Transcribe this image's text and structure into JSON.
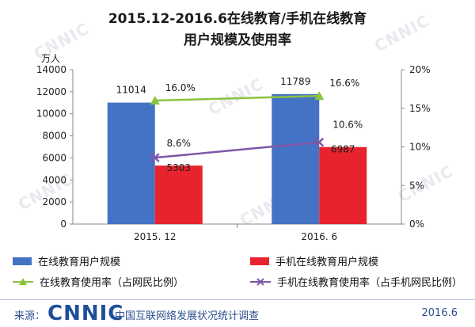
{
  "title_line1": "2015.12-2016.6在线教育/手机在线教育",
  "title_line2": "用户规模及使用率",
  "watermark": "CNNIC",
  "chart_data": {
    "type": "bar",
    "categories": [
      "2015. 12",
      "2016. 6"
    ],
    "left_axis_unit": "万人",
    "left_ylim": [
      0,
      14000
    ],
    "left_ticks": [
      0,
      2000,
      4000,
      6000,
      8000,
      10000,
      12000,
      14000
    ],
    "right_ylim": [
      0,
      20
    ],
    "right_ticks": [
      "0%",
      "5%",
      "10%",
      "15%",
      "20%"
    ],
    "series": [
      {
        "name": "在线教育用户规模",
        "kind": "bar",
        "axis": "left",
        "color": "#4472c4",
        "values": [
          11014,
          11789
        ],
        "labels": [
          "11014",
          "11789"
        ]
      },
      {
        "name": "手机在线教育用户规模",
        "kind": "bar",
        "axis": "left",
        "color": "#e8232e",
        "values": [
          5303,
          6987
        ],
        "labels": [
          "5303",
          "6987"
        ]
      },
      {
        "name": "在线教育使用率（占网民比例）",
        "kind": "line",
        "axis": "right",
        "color": "#8cc240",
        "marker": "triangle",
        "values": [
          16.0,
          16.6
        ],
        "labels": [
          "16.0%",
          "16.6%"
        ]
      },
      {
        "name": "手机在线教育使用率（占手机网民比例）",
        "kind": "line",
        "axis": "right",
        "color": "#7e57a8",
        "marker": "x",
        "values": [
          8.6,
          10.6
        ],
        "labels": [
          "8.6%",
          "10.6%"
        ]
      }
    ]
  },
  "legend": {
    "item1": "在线教育用户规模",
    "item2": "手机在线教育用户规模",
    "item3": "在线教育使用率（占网民比例）",
    "item4": "手机在线教育使用率（占手机网民比例）"
  },
  "footer": {
    "source_label": "来源：",
    "logo": "CNNIC",
    "org": "中国互联网络发展状况统计调查",
    "date": "2016.6"
  }
}
